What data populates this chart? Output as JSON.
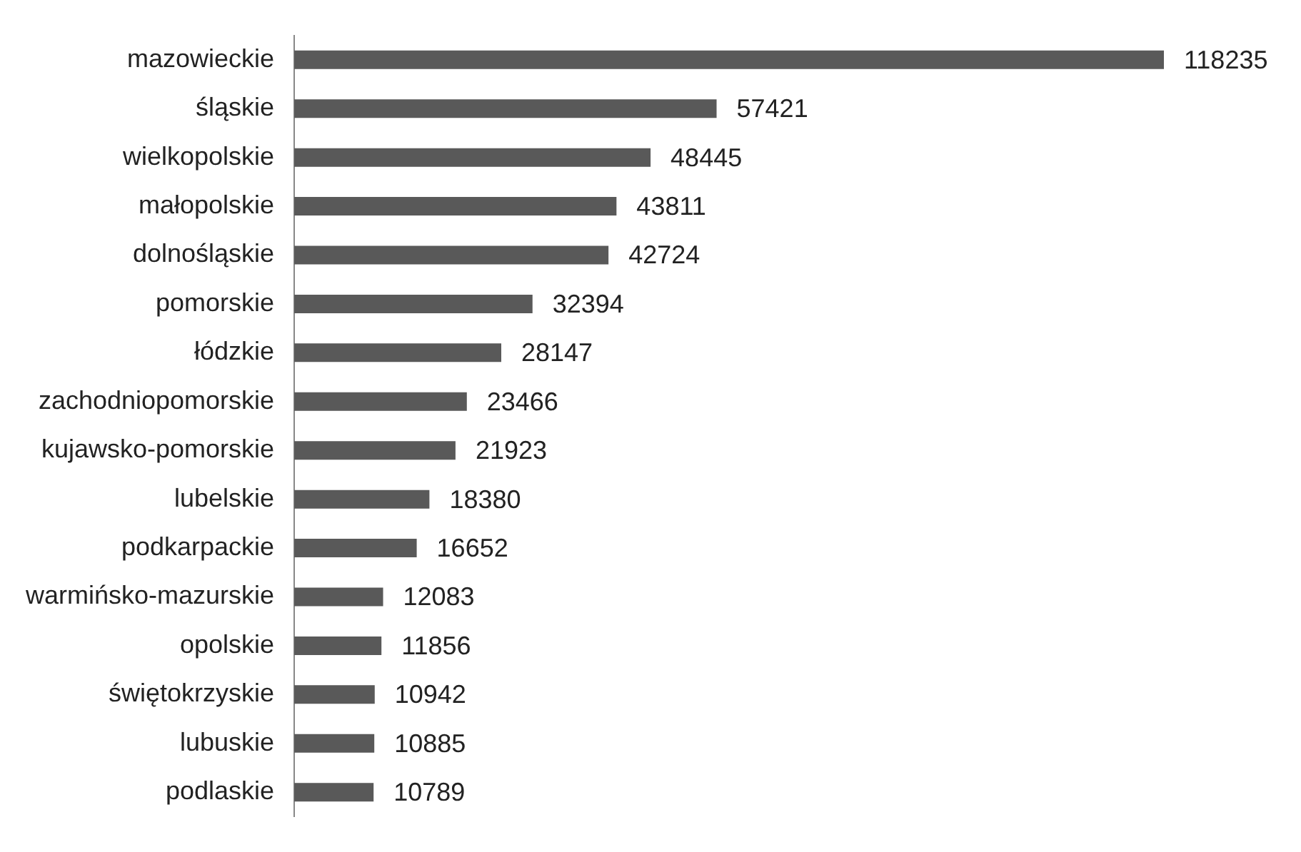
{
  "chart_data": {
    "type": "bar",
    "orientation": "horizontal",
    "categories": [
      "mazowieckie",
      "śląskie",
      "wielkopolskie",
      "małopolskie",
      "dolnośląskie",
      "pomorskie",
      "łódzkie",
      "zachodniopomorskie",
      "kujawsko-pomorskie",
      "lubelskie",
      "podkarpackie",
      "warmińsko-mazurskie",
      "opolskie",
      "świętokrzyskie",
      "lubuskie",
      "podlaskie"
    ],
    "values": [
      118235,
      57421,
      48445,
      43811,
      42724,
      32394,
      28147,
      23466,
      21923,
      18380,
      16652,
      12083,
      11856,
      10942,
      10885,
      10789
    ],
    "color": "#595959",
    "data_labels": true,
    "legend": false,
    "tick_labels": "y"
  }
}
